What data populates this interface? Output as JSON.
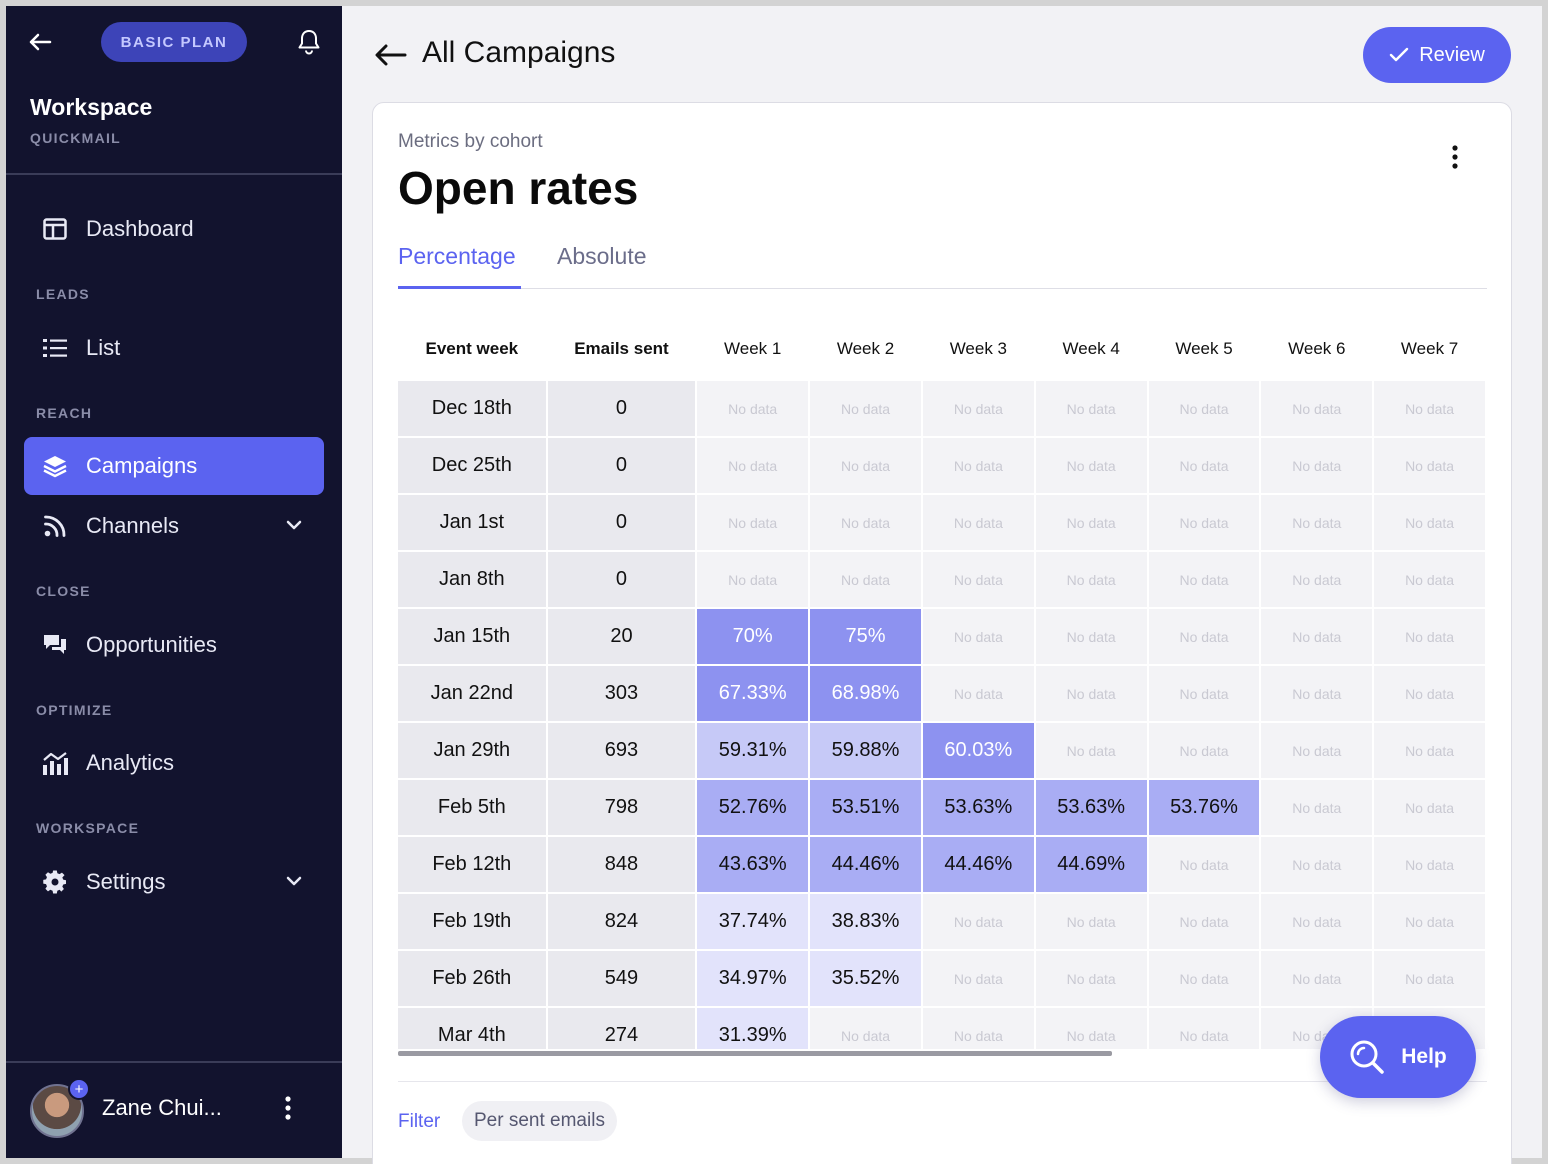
{
  "sidebar": {
    "plan_badge": "BASIC PLAN",
    "workspace_name": "Workspace",
    "workspace_sub": "QUICKMAIL",
    "sections": {
      "leads": "LEADS",
      "reach": "REACH",
      "close": "CLOSE",
      "optimize": "OPTIMIZE",
      "workspace": "WORKSPACE"
    },
    "items": {
      "dashboard": "Dashboard",
      "list": "List",
      "campaigns": "Campaigns",
      "channels": "Channels",
      "opportunities": "Opportunities",
      "analytics": "Analytics",
      "settings": "Settings"
    },
    "active_item": "Campaigns",
    "user_name": "Zane Chui..."
  },
  "header": {
    "title": "All Campaigns",
    "review_label": "Review"
  },
  "card": {
    "subtitle": "Metrics by cohort",
    "title": "Open rates",
    "tabs": [
      "Percentage",
      "Absolute"
    ],
    "active_tab": "Percentage"
  },
  "table": {
    "headers": [
      "Event week",
      "Emails sent",
      "Week 1",
      "Week 2",
      "Week 3",
      "Week 4",
      "Week 5",
      "Week 6",
      "Week 7"
    ],
    "no_data_label": "No data",
    "rows": [
      {
        "week": "Dec 18th",
        "sent": "0",
        "values": [
          null,
          null,
          null,
          null,
          null,
          null,
          null
        ]
      },
      {
        "week": "Dec 25th",
        "sent": "0",
        "values": [
          null,
          null,
          null,
          null,
          null,
          null,
          null
        ]
      },
      {
        "week": "Jan 1st",
        "sent": "0",
        "values": [
          null,
          null,
          null,
          null,
          null,
          null,
          null
        ]
      },
      {
        "week": "Jan 8th",
        "sent": "0",
        "values": [
          null,
          null,
          null,
          null,
          null,
          null,
          null
        ]
      },
      {
        "week": "Jan 15th",
        "sent": "20",
        "values": [
          "70%",
          "75%",
          null,
          null,
          null,
          null,
          null
        ]
      },
      {
        "week": "Jan 22nd",
        "sent": "303",
        "values": [
          "67.33%",
          "68.98%",
          null,
          null,
          null,
          null,
          null
        ]
      },
      {
        "week": "Jan 29th",
        "sent": "693",
        "values": [
          "59.31%",
          "59.88%",
          "60.03%",
          null,
          null,
          null,
          null
        ]
      },
      {
        "week": "Feb 5th",
        "sent": "798",
        "values": [
          "52.76%",
          "53.51%",
          "53.63%",
          "53.63%",
          "53.76%",
          null,
          null
        ]
      },
      {
        "week": "Feb 12th",
        "sent": "848",
        "values": [
          "43.63%",
          "44.46%",
          "44.46%",
          "44.69%",
          null,
          null,
          null
        ]
      },
      {
        "week": "Feb 19th",
        "sent": "824",
        "values": [
          "37.74%",
          "38.83%",
          null,
          null,
          null,
          null,
          null
        ]
      },
      {
        "week": "Feb 26th",
        "sent": "549",
        "values": [
          "34.97%",
          "35.52%",
          null,
          null,
          null,
          null,
          null
        ]
      },
      {
        "week": "Mar 4th",
        "sent": "274",
        "values": [
          "31.39%",
          null,
          null,
          null,
          null,
          null,
          null
        ]
      }
    ]
  },
  "footer": {
    "filter_label": "Filter",
    "chip_label": "Per sent emails"
  },
  "help_label": "Help",
  "colors": {
    "accent": "#5b63f0",
    "sidebar_bg": "#12132e",
    "heat_low": "#e2e3fb",
    "heat_high": "#8d92f0"
  }
}
